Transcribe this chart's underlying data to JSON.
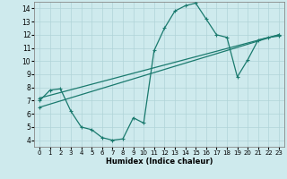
{
  "background_color": "#ceeaed",
  "grid_color": "#b0d4d8",
  "line_color": "#1a7a6e",
  "xlabel": "Humidex (Indice chaleur)",
  "xlim": [
    -0.5,
    23.5
  ],
  "ylim": [
    3.5,
    14.5
  ],
  "xticks": [
    0,
    1,
    2,
    3,
    4,
    5,
    6,
    7,
    8,
    9,
    10,
    11,
    12,
    13,
    14,
    15,
    16,
    17,
    18,
    19,
    20,
    21,
    22,
    23
  ],
  "yticks": [
    4,
    5,
    6,
    7,
    8,
    9,
    10,
    11,
    12,
    13,
    14
  ],
  "line1_x": [
    0,
    1,
    2,
    3,
    4,
    5,
    6,
    7,
    8,
    9,
    10,
    11,
    12,
    13,
    14,
    15,
    16,
    17,
    18,
    19,
    20,
    21,
    22,
    23
  ],
  "line1_y": [
    7.0,
    7.8,
    7.9,
    6.2,
    5.0,
    4.8,
    4.2,
    4.0,
    4.1,
    5.7,
    5.3,
    10.8,
    12.5,
    13.8,
    14.2,
    14.4,
    13.2,
    12.0,
    11.8,
    8.8,
    10.1,
    11.6,
    11.8,
    11.9
  ],
  "line2_x": [
    0,
    23
  ],
  "line2_y": [
    6.5,
    12.0
  ],
  "line3_x": [
    0,
    23
  ],
  "line3_y": [
    7.2,
    12.0
  ],
  "marker": "+",
  "markersize": 3.5,
  "linewidth": 0.9
}
